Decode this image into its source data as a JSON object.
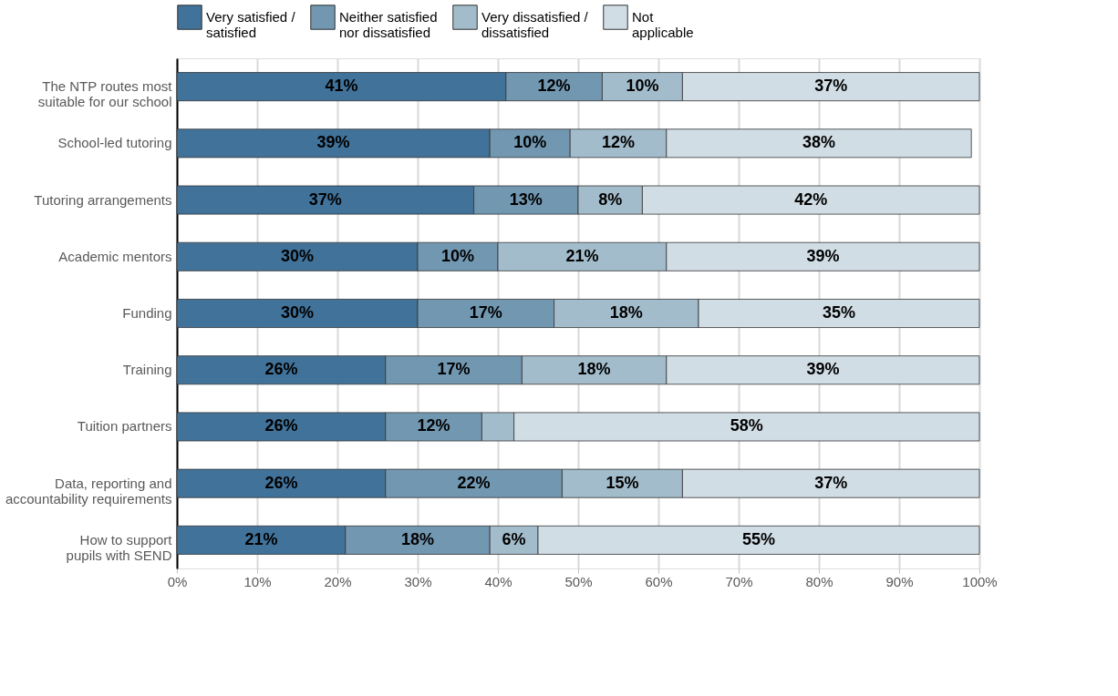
{
  "chart_data": {
    "type": "bar",
    "orientation": "horizontal",
    "stacked": true,
    "categories": [
      "The NTP routes most suitable for our school",
      "School-led tutoring",
      "Tutoring arrangements",
      "Academic mentors",
      "Funding",
      "Training",
      "Tuition partners",
      "Data, reporting and accountability requirements",
      "How to support pupils with SEND"
    ],
    "series": [
      {
        "name": "Very satisfied / satisfied",
        "color": "#41729a",
        "values": [
          41,
          39,
          37,
          30,
          30,
          26,
          26,
          26,
          21
        ],
        "value_labels": [
          "41%",
          "39%",
          "37%",
          "30%",
          "30%",
          "26%",
          "26%",
          "26%",
          "21%"
        ]
      },
      {
        "name": "Neither satisfied nor dissatisfied",
        "color": "#7297b1",
        "values": [
          12,
          10,
          13,
          10,
          17,
          17,
          12,
          22,
          18
        ],
        "value_labels": [
          "12%",
          "10%",
          "13%",
          "10%",
          "17%",
          "17%",
          "12%",
          "22%",
          "18%"
        ]
      },
      {
        "name": "Very dissatisfied / dissatisfied",
        "color": "#a3bccb",
        "values": [
          10,
          12,
          8,
          21,
          18,
          18,
          4,
          15,
          6
        ],
        "value_labels": [
          "10%",
          "12%",
          "8%",
          "21%",
          "18%",
          "18%",
          null,
          "15%",
          "6%"
        ]
      },
      {
        "name": "Not applicable",
        "color": "#d1dde5",
        "values": [
          37,
          38,
          42,
          39,
          35,
          39,
          58,
          37,
          55
        ],
        "value_labels": [
          "37%",
          "38%",
          "42%",
          "39%",
          "35%",
          "39%",
          "58%",
          "37%",
          "55%"
        ]
      }
    ],
    "xlim": [
      0,
      100
    ],
    "xticks": [
      {
        "value": 0,
        "label": "0%"
      },
      {
        "value": 10,
        "label": "10%"
      },
      {
        "value": 20,
        "label": "20%"
      },
      {
        "value": 30,
        "label": "30%"
      },
      {
        "value": 40,
        "label": "40%"
      },
      {
        "value": 50,
        "label": "50%"
      },
      {
        "value": 60,
        "label": "60%"
      },
      {
        "value": 70,
        "label": "70%"
      },
      {
        "value": 80,
        "label": "80%"
      },
      {
        "value": 90,
        "label": "90%"
      },
      {
        "value": 100,
        "label": "100%"
      }
    ],
    "grid": "x",
    "legend": "top"
  }
}
